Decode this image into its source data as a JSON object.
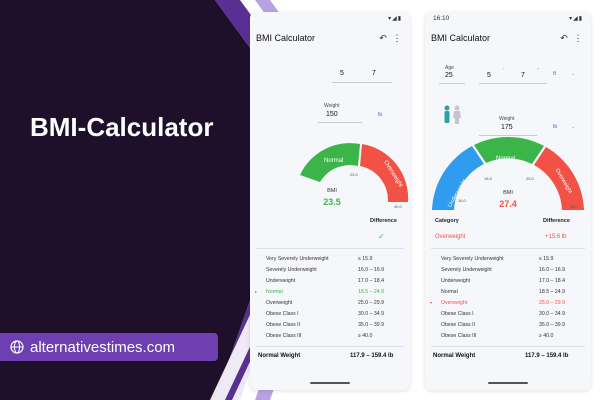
{
  "hero": {
    "title": "BMI-Calculator",
    "site": "alternativestimes.com"
  },
  "colors": {
    "dark": "#1e0f2b",
    "purple": "#6d3fb0",
    "underweight": "#2f9cf0",
    "normal": "#3bb54a",
    "overweight": "#f25245",
    "unit": "#4a6fd8"
  },
  "phone1": {
    "title": "BMI Calculator",
    "height_ft": "5",
    "height_in": "7",
    "weight_label": "Weight",
    "weight_value": "150",
    "weight_unit": "lb",
    "gauge_labels": {
      "normal": "Normal",
      "overweight": "Overweight",
      "t1": "25.0",
      "t2": "40.0"
    },
    "bmi_label": "BMI",
    "bmi_value": "23.5",
    "difference_header": "Difference",
    "rows": [
      {
        "name": "Very Severely Underweight",
        "range": "≤ 15.9"
      },
      {
        "name": "Severely Underweight",
        "range": "16.0 – 16.9"
      },
      {
        "name": "Underweight",
        "range": "17.0 – 18.4"
      },
      {
        "name": "Normal",
        "range": "18.5 – 24.9"
      },
      {
        "name": "Overweight",
        "range": "25.0 – 29.9"
      },
      {
        "name": "Obese Class I",
        "range": "30.0 – 34.9"
      },
      {
        "name": "Obese Class II",
        "range": "35.0 – 39.9"
      },
      {
        "name": "Obese Class III",
        "range": "≥ 40.0"
      }
    ],
    "footer_label": "Normal Weight",
    "footer_value": "117.9 – 159.4 lb"
  },
  "phone2": {
    "time": "16:10",
    "title": "BMI Calculator",
    "age_label": "Age",
    "age_value": "25",
    "height_ft": "5",
    "height_in": "7",
    "height_unit": "ft",
    "weight_label": "Weight",
    "weight_value": "175",
    "weight_unit": "lb",
    "gauge_labels": {
      "underweight": "Underweight",
      "normal": "Normal",
      "overweight": "Overweight",
      "t1": "16.0",
      "t2": "18.5",
      "t3": "25.0",
      "t4": "40.0"
    },
    "bmi_label": "BMI",
    "bmi_value": "27.4",
    "category_header": "Category",
    "difference_header": "Difference",
    "category_value": "Overweight",
    "difference_value": "+15.6 lb",
    "rows": [
      {
        "name": "Very Severely Underweight",
        "range": "≤ 15.9"
      },
      {
        "name": "Severely Underweight",
        "range": "16.0 – 16.9"
      },
      {
        "name": "Underweight",
        "range": "17.0 – 18.4"
      },
      {
        "name": "Normal",
        "range": "18.5 – 24.9"
      },
      {
        "name": "Overweight",
        "range": "25.0 – 29.9"
      },
      {
        "name": "Obese Class I",
        "range": "30.0 – 34.9"
      },
      {
        "name": "Obese Class II",
        "range": "35.0 – 39.9"
      },
      {
        "name": "Obese Class III",
        "range": "≥ 40.0"
      }
    ],
    "footer_label": "Normal Weight",
    "footer_value": "117.9 – 159.4 lb"
  }
}
